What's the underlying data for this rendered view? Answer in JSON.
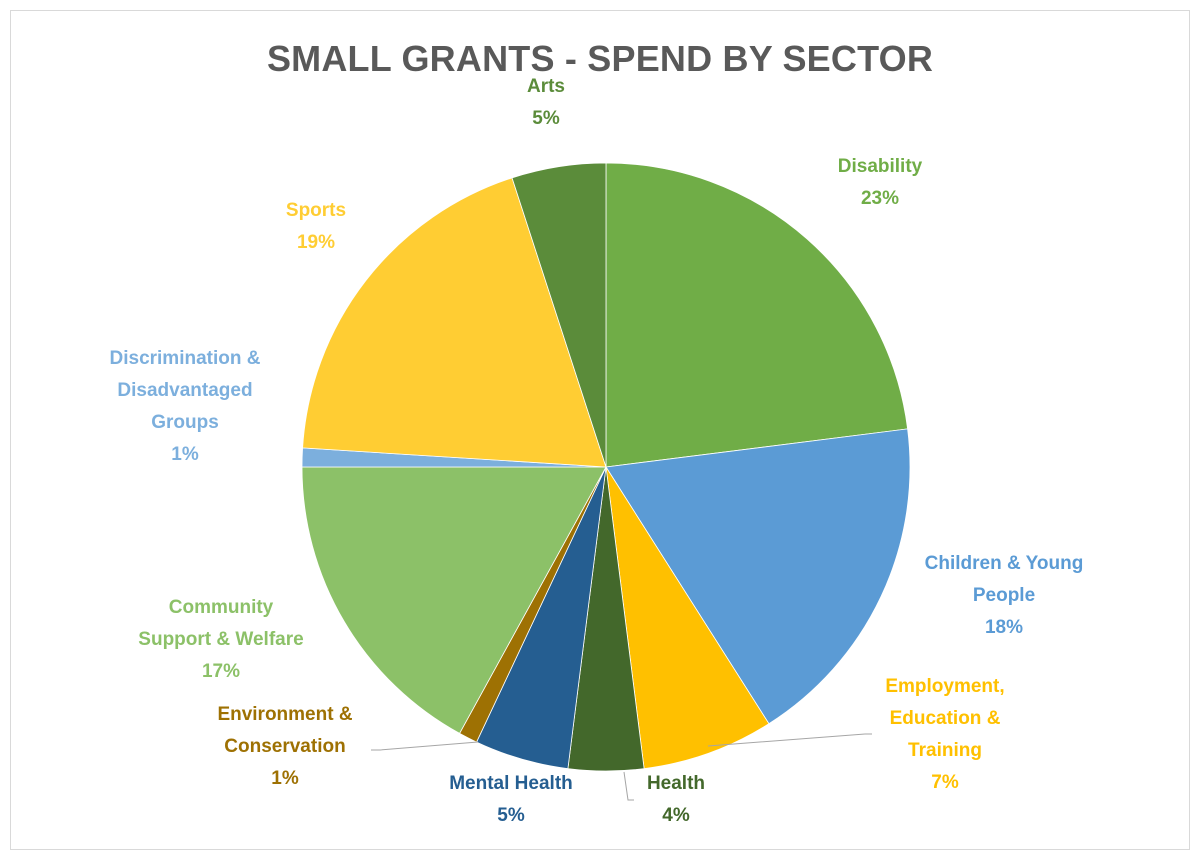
{
  "chart_data": {
    "type": "pie",
    "title": "SMALL GRANTS - SPEND BY SECTOR",
    "slices": [
      {
        "label": [
          "Disability"
        ],
        "value": 23,
        "pct": "23%",
        "color": "#70ad47"
      },
      {
        "label": [
          "Children & Young",
          "People"
        ],
        "value": 18,
        "pct": "18%",
        "color": "#5b9bd5"
      },
      {
        "label": [
          "Employment,",
          "Education &",
          "Training"
        ],
        "value": 7,
        "pct": "7%",
        "color": "#ffc000"
      },
      {
        "label": [
          "Health"
        ],
        "value": 4,
        "pct": "4%",
        "color": "#43682b"
      },
      {
        "label": [
          "Mental Health"
        ],
        "value": 5,
        "pct": "5%",
        "color": "#255e91"
      },
      {
        "label": [
          "Environment &",
          "Conservation"
        ],
        "value": 1,
        "pct": "1%",
        "color": "#9e7103"
      },
      {
        "label": [
          "Community",
          "Support & Welfare"
        ],
        "value": 17,
        "pct": "17%",
        "color": "#8cc168"
      },
      {
        "label": [
          "Discrimination &",
          "Disadvantaged",
          "Groups"
        ],
        "value": 1,
        "pct": "1%",
        "color": "#7cafdd"
      },
      {
        "label": [
          "Sports"
        ],
        "value": 19,
        "pct": "19%",
        "color": "#ffcd33"
      },
      {
        "label": [
          "Arts"
        ],
        "value": 5,
        "pct": "5%",
        "color": "#5b8c3a"
      }
    ],
    "label_colors": [
      "#70ad47",
      "#5b9bd5",
      "#ffc000",
      "#43682b",
      "#255e91",
      "#9e7103",
      "#8cc168",
      "#7cafdd",
      "#ffcd33",
      "#5b8c3a"
    ]
  }
}
